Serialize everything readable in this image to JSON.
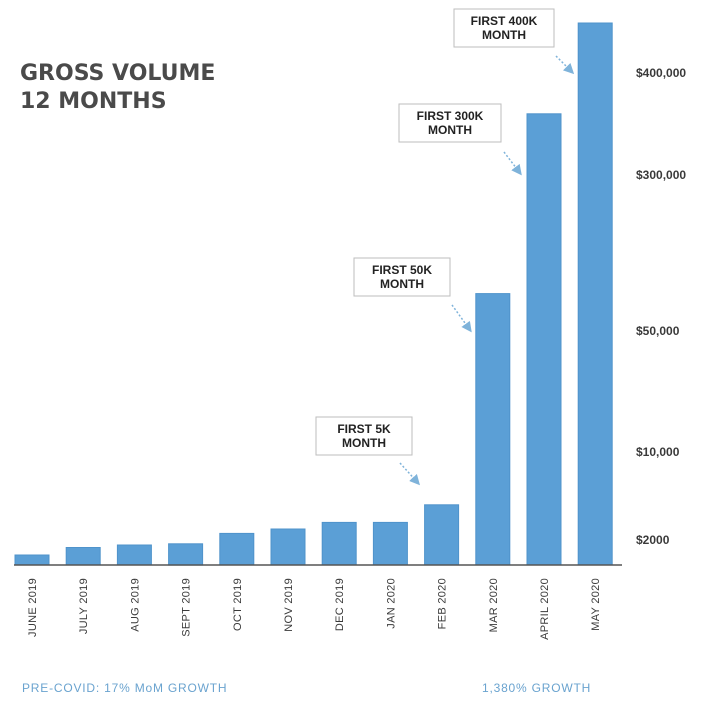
{
  "chart_data": {
    "type": "bar",
    "title_lines": [
      "GROSS VOLUME",
      "12 MONTHS"
    ],
    "categories": [
      "JUNE 2019",
      "JULY 2019",
      "AUG 2019",
      "SEPT 2019",
      "OCT 2019",
      "NOV 2019",
      "DEC 2019",
      "JAN 2020",
      "FEB 2020",
      "MAR 2020",
      "APRIL 2020",
      "MAY 2020"
    ],
    "values": [
      800,
      1400,
      1600,
      1700,
      2600,
      3000,
      3600,
      3600,
      5200,
      110000,
      360000,
      450000
    ],
    "y_ticks": [
      {
        "value": 2000,
        "label": "$2000"
      },
      {
        "value": 10000,
        "label": "$10,000"
      },
      {
        "value": 50000,
        "label": "$50,000"
      },
      {
        "value": 300000,
        "label": "$300,000"
      },
      {
        "value": 400000,
        "label": "$400,000"
      }
    ],
    "ylim": [
      0,
      460000
    ],
    "axis_scale": "non-linear (piecewise)",
    "annotations": [
      {
        "lines": [
          "FIRST 5K",
          "MONTH"
        ],
        "category": "FEB 2020"
      },
      {
        "lines": [
          "FIRST 50K",
          "MONTH"
        ],
        "category": "MAR 2020"
      },
      {
        "lines": [
          "FIRST 300K",
          "MONTH"
        ],
        "category": "APRIL 2020"
      },
      {
        "lines": [
          "FIRST 400K",
          "MONTH"
        ],
        "category": "MAY 2020"
      }
    ],
    "footer_left": "PRE-COVID: 17% MoM GROWTH",
    "footer_right": "1,380% GROWTH",
    "grid": false,
    "colors": {
      "bar": "#5b9fd6",
      "bar_border": "#4f93cb",
      "axis": "#555555",
      "footer": "#6aa3cf",
      "arrow": "#7fb3da"
    }
  }
}
